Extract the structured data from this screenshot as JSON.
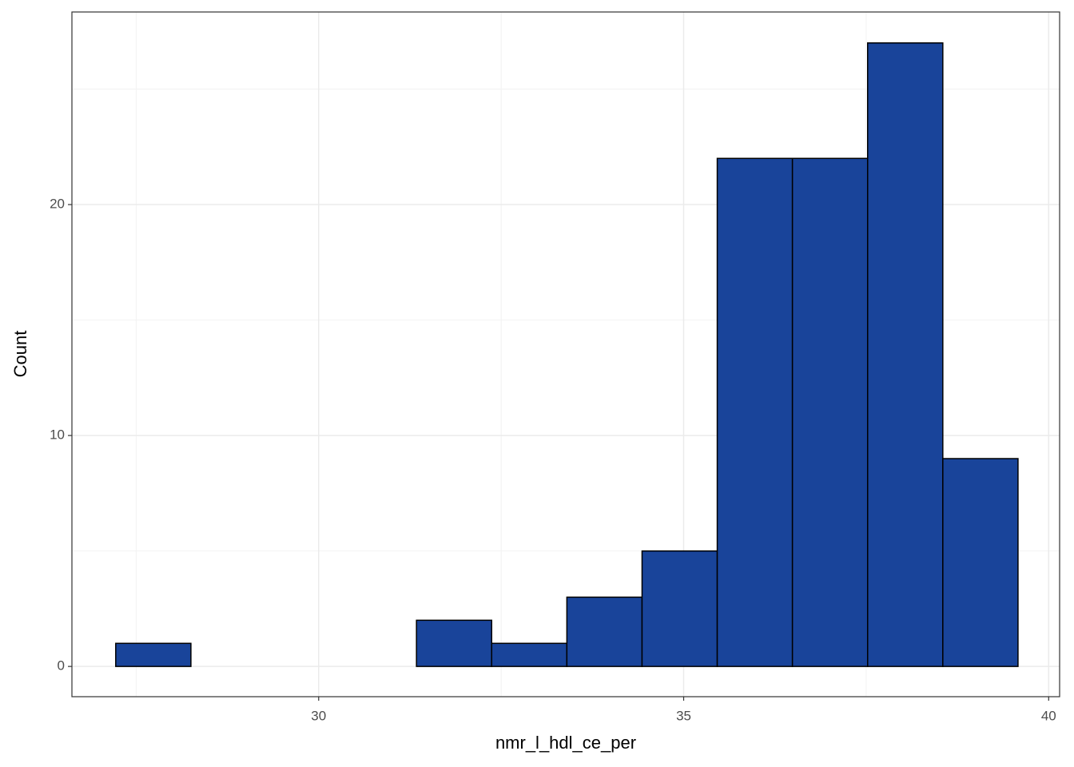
{
  "chart_data": {
    "type": "histogram",
    "x_label": "nmr_l_hdl_ce_per",
    "y_label": "Count",
    "bins": [
      27.22,
      28.25,
      29.28,
      30.31,
      31.34,
      32.37,
      33.4,
      34.43,
      35.46,
      36.49,
      37.52,
      38.55,
      39.58
    ],
    "values": [
      1,
      0,
      0,
      0,
      2,
      1,
      3,
      5,
      22,
      22,
      27,
      9
    ],
    "color": "#19449a",
    "edgecolor": "#000000",
    "xlim": [
      26.62,
      40.15
    ],
    "xticks": [
      30,
      35,
      40
    ],
    "ylim": [
      -1.31,
      28.34
    ],
    "yticks": [
      0,
      10,
      20
    ],
    "grid": true
  }
}
